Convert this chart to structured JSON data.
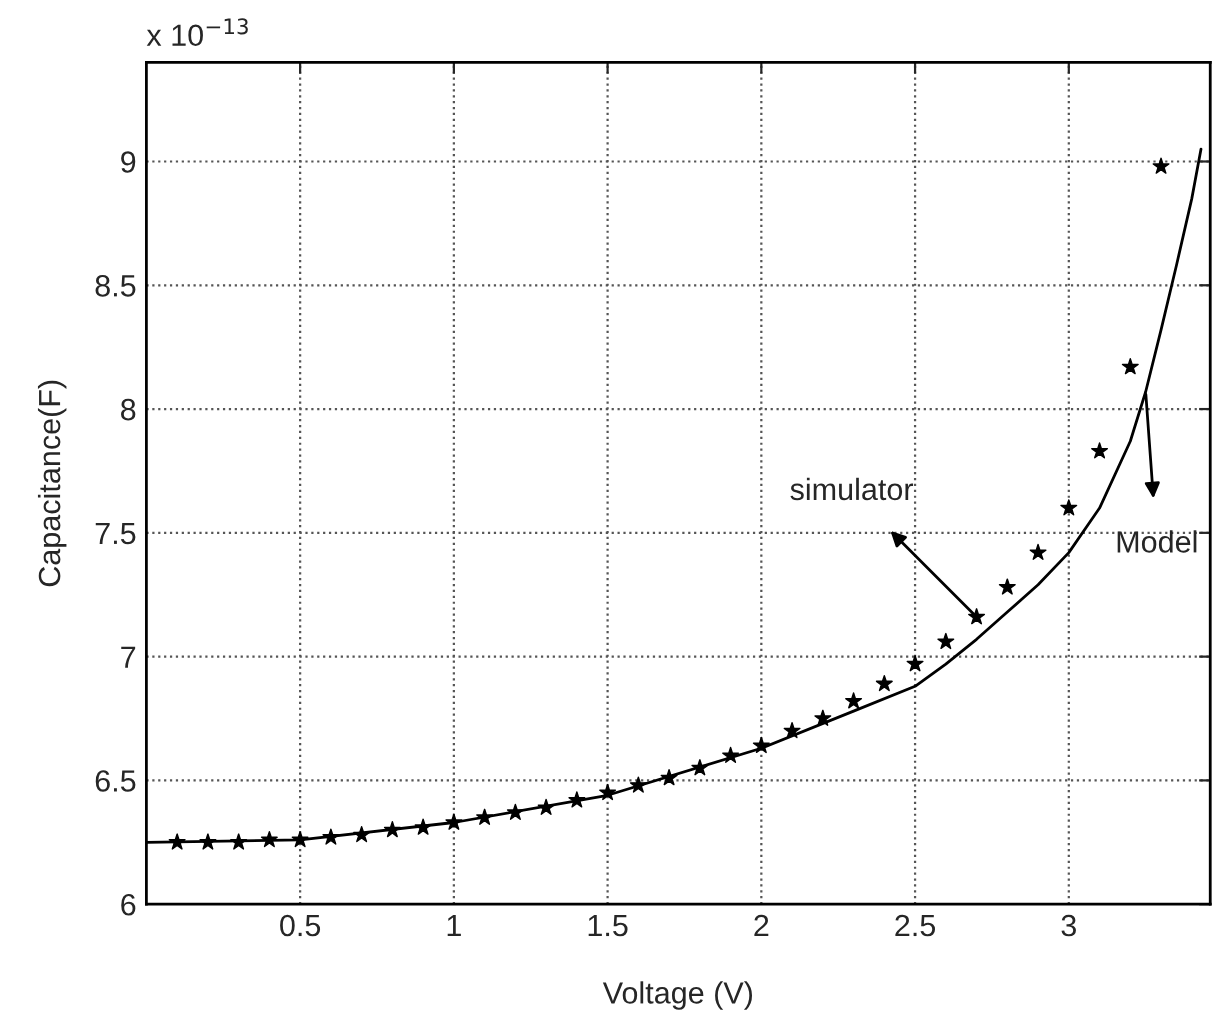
{
  "chart_data": {
    "type": "line",
    "xlabel": "Voltage (V)",
    "ylabel": "Capacitance(F)",
    "xlim": [
      0,
      3.46
    ],
    "ylim": [
      6,
      9.4
    ],
    "xticks": [
      0.5,
      1,
      1.5,
      2,
      2.5,
      3
    ],
    "yticks": [
      6,
      6.5,
      7,
      7.5,
      8,
      8.5,
      9
    ],
    "grid": true,
    "series": [
      {
        "type": "scatter",
        "marker": "star",
        "color": "#000000",
        "x": [
          0.1,
          0.2,
          0.3,
          0.4,
          0.5,
          0.6,
          0.7,
          0.8,
          0.9,
          1.0,
          1.1,
          1.2,
          1.3,
          1.4,
          1.5,
          1.6,
          1.7,
          1.8,
          1.9,
          2.0,
          2.1,
          2.2,
          2.3,
          2.4,
          2.5,
          2.6,
          2.7,
          2.8,
          2.9,
          3.0,
          3.1,
          3.2,
          3.3
        ],
        "values": [
          6.25,
          6.25,
          6.25,
          6.26,
          6.26,
          6.27,
          6.28,
          6.3,
          6.31,
          6.33,
          6.35,
          6.37,
          6.39,
          6.42,
          6.45,
          6.48,
          6.51,
          6.55,
          6.6,
          6.64,
          6.7,
          6.75,
          6.82,
          6.89,
          6.97,
          7.06,
          7.16,
          7.28,
          7.42,
          7.6,
          7.83,
          8.17,
          8.98
        ]
      },
      {
        "line_style": "solid",
        "color": "#000000",
        "x": [
          0,
          0.5,
          1.0,
          1.5,
          2.0,
          2.3,
          2.5,
          2.6,
          2.7,
          2.8,
          2.9,
          3.0,
          3.1,
          3.2,
          3.25,
          3.3,
          3.35,
          3.4,
          3.43
        ],
        "values": [
          6.25,
          6.26,
          6.33,
          6.44,
          6.63,
          6.78,
          6.88,
          6.97,
          7.07,
          7.18,
          7.29,
          7.42,
          7.6,
          7.87,
          8.07,
          8.32,
          8.58,
          8.85,
          9.05
        ]
      }
    ],
    "annotations": [
      "x 10$^{−13}$",
      {
        "text": "simulator",
        "x": 2.7,
        "y": 7.16
      },
      {
        "text": "Model",
        "x": 3.25,
        "y": 8.07
      }
    ]
  }
}
